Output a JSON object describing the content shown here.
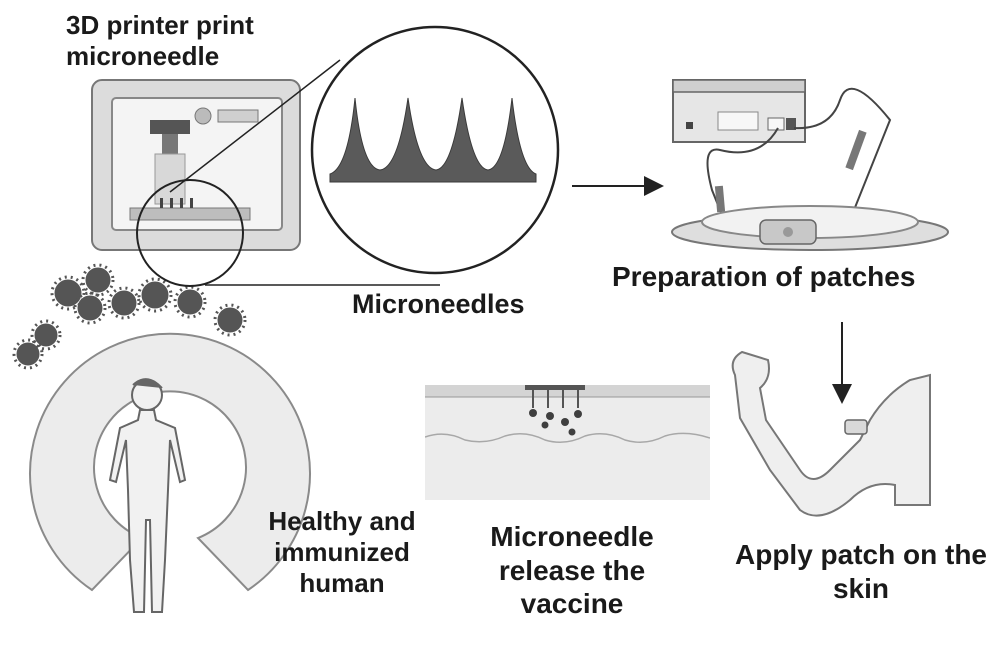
{
  "labels": {
    "printer": "3D printer print microneedle",
    "microneedles": "Microneedles",
    "preparation": "Preparation of patches",
    "healthy": "Healthy and immunized human",
    "release": "Microneedle release the vaccine",
    "apply": "Apply patch on the skin"
  },
  "icons": {
    "printer": "3d-printer-icon",
    "microneedle_zoom": "magnifier-circle-icon",
    "power_supply": "power-supply-icon",
    "patch_dish": "patch-dish-icon",
    "arm": "arm-with-patch-icon",
    "skin": "skin-cross-section-icon",
    "human": "human-figure-icon",
    "shield": "immune-shield-icon",
    "virus": "virus-icon"
  },
  "colors": {
    "outline": "#555555",
    "fill_light": "#ececec",
    "fill_mid": "#cfcfcf",
    "dark": "#3f3f3f"
  }
}
